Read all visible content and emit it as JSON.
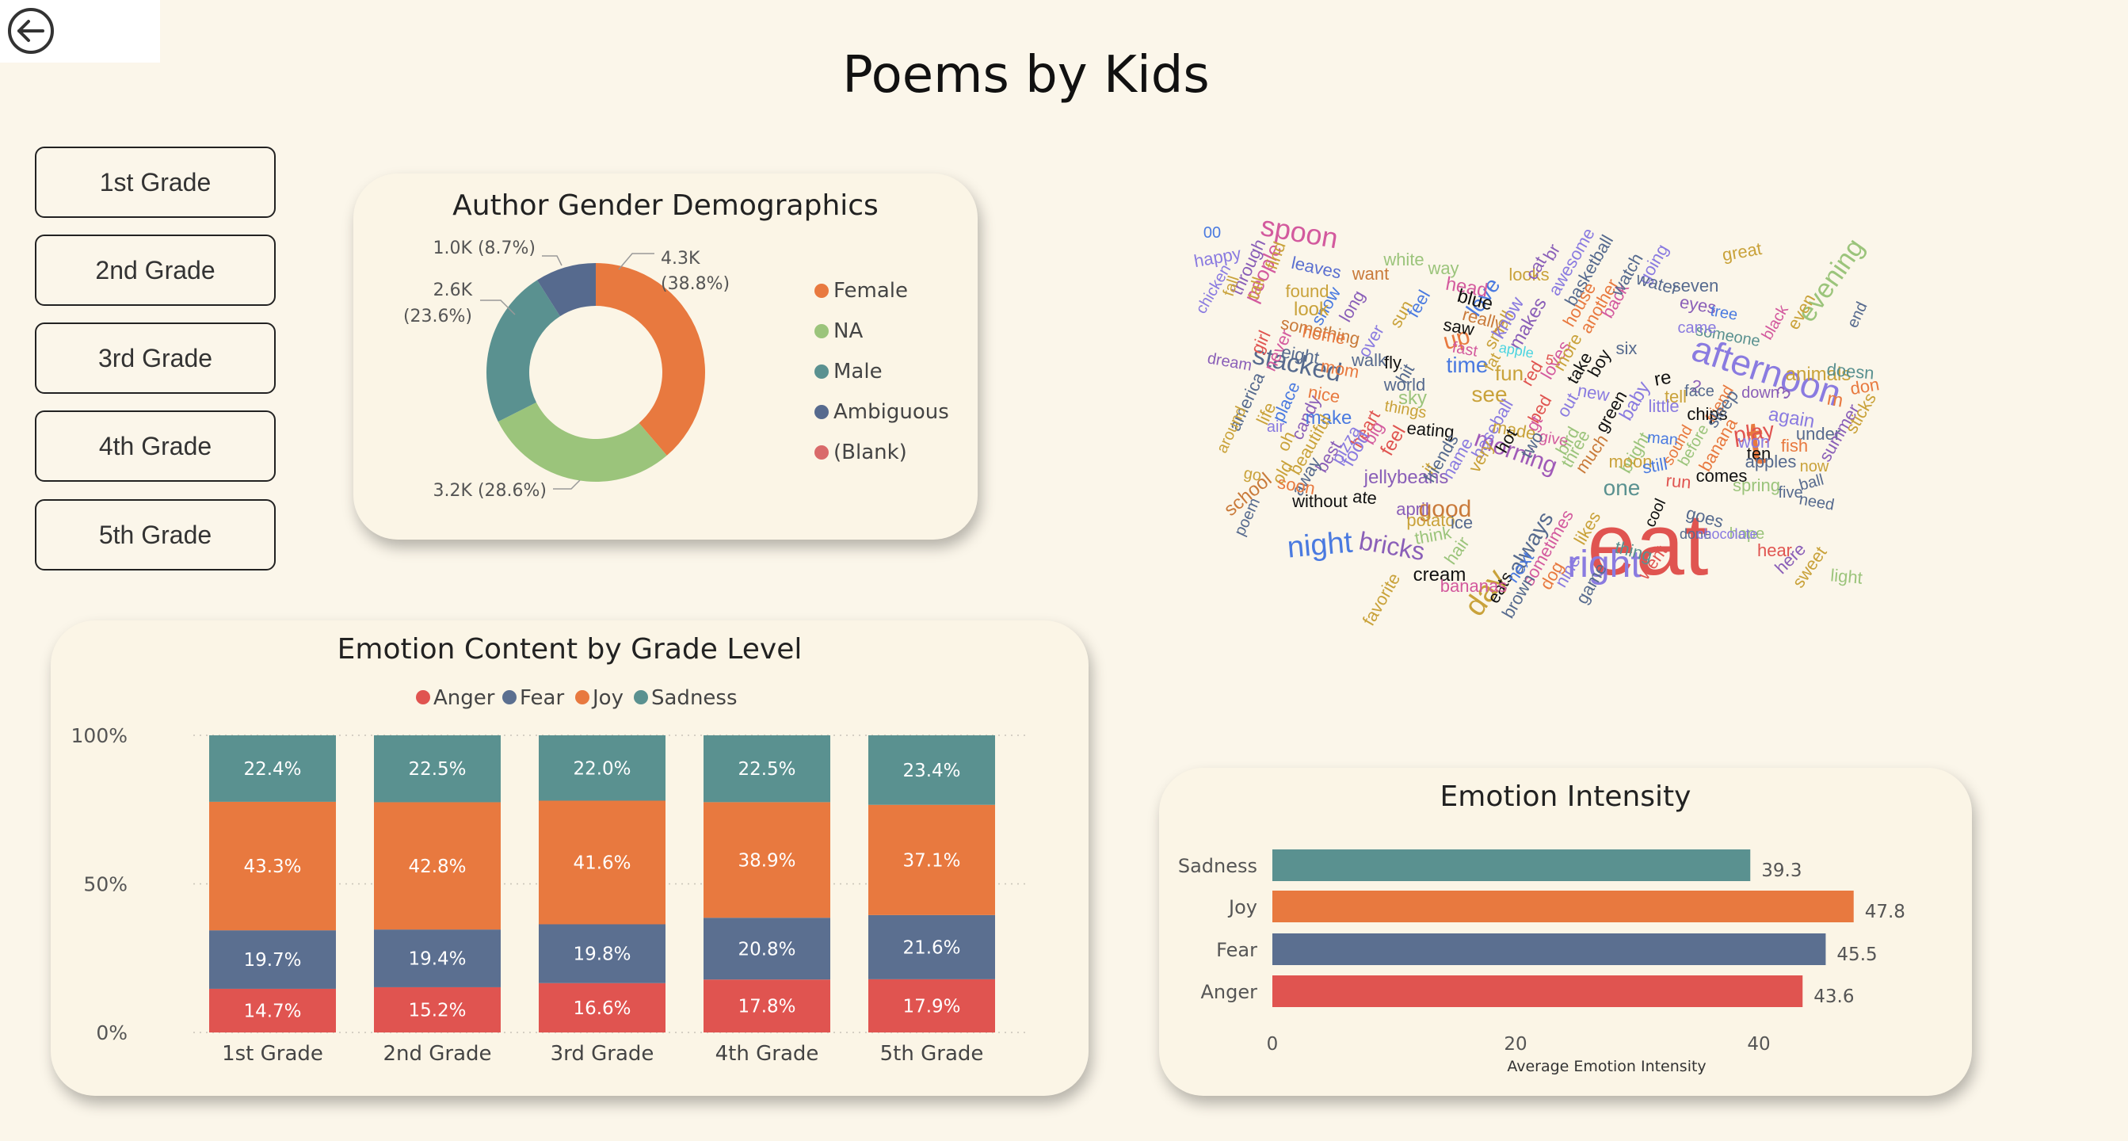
{
  "page": {
    "title": "Poems by Kids"
  },
  "nav": {
    "back_icon": "arrow-left-circle-icon"
  },
  "grades": [
    {
      "label": "1st Grade"
    },
    {
      "label": "2nd Grade"
    },
    {
      "label": "3rd Grade"
    },
    {
      "label": "4th Grade"
    },
    {
      "label": "5th Grade"
    }
  ],
  "colors": {
    "female": "#e8793f",
    "na": "#9bc47b",
    "male": "#5a9190",
    "ambiguous": "#566a8e",
    "blank": "#d96a6a",
    "anger": "#e05450",
    "fear": "#5b6f90",
    "joy": "#e8793f",
    "sadness": "#5a9190"
  },
  "chart_data": [
    {
      "type": "pie",
      "subtype": "donut",
      "title": "Author Gender Demographics",
      "legend": [
        "Female",
        "NA",
        "Male",
        "Ambiguous",
        "(Blank)"
      ],
      "legend_position": "right",
      "slices": [
        {
          "name": "Female",
          "value": 4300,
          "label": "4.3K",
          "percent_label": "(38.8%)"
        },
        {
          "name": "NA",
          "value": 3200,
          "label": "3.2K (28.6%)"
        },
        {
          "name": "Male",
          "value": 2600,
          "label": "2.6K",
          "percent_label": "(23.6%)"
        },
        {
          "name": "Ambiguous",
          "value": 1000,
          "label": "1.0K (8.7%)"
        }
      ]
    },
    {
      "type": "bar",
      "subtype": "100% stacked",
      "title": "Emotion Content by Grade Level",
      "legend": [
        "Anger",
        "Fear",
        "Joy",
        "Sadness"
      ],
      "legend_position": "top",
      "categories": [
        "1st Grade",
        "2nd Grade",
        "3rd Grade",
        "4th Grade",
        "5th Grade"
      ],
      "yticks": [
        "0%",
        "50%",
        "100%"
      ],
      "ylim": [
        0,
        100
      ],
      "grid": true,
      "series": [
        {
          "name": "Anger",
          "values": [
            14.7,
            15.2,
            16.6,
            17.8,
            17.9
          ],
          "labels": [
            "14.7%",
            "15.2%",
            "16.6%",
            "17.8%",
            "17.9%"
          ]
        },
        {
          "name": "Fear",
          "values": [
            19.7,
            19.4,
            19.8,
            20.8,
            21.6
          ],
          "labels": [
            "19.7%",
            "19.4%",
            "19.8%",
            "20.8%",
            "21.6%"
          ]
        },
        {
          "name": "Joy",
          "values": [
            43.3,
            42.8,
            41.6,
            38.9,
            37.1
          ],
          "labels": [
            "43.3%",
            "42.8%",
            "41.6%",
            "38.9%",
            "37.1%"
          ]
        },
        {
          "name": "Sadness",
          "values": [
            22.4,
            22.5,
            22.0,
            22.5,
            23.4
          ],
          "labels": [
            "22.4%",
            "22.5%",
            "22.0%",
            "22.5%",
            "23.4%"
          ]
        }
      ]
    },
    {
      "type": "bar",
      "orientation": "horizontal",
      "title": "Emotion Intensity",
      "categories": [
        "Sadness",
        "Joy",
        "Fear",
        "Anger"
      ],
      "values": [
        39.3,
        47.8,
        45.5,
        43.6
      ],
      "labels": [
        "39.3",
        "47.8",
        "45.5",
        "43.6"
      ],
      "xlabel": "Average Emotion Intensity",
      "xticks": [
        "0",
        "20",
        "40"
      ],
      "xlim": [
        0,
        50
      ]
    }
  ],
  "word_cloud": {
    "words": [
      {
        "t": "eat",
        "c": "#e05450"
      },
      {
        "t": "t",
        "c": "#e8793f"
      },
      {
        "t": "right",
        "c": "#8a7be0"
      },
      {
        "t": "afternoon",
        "c": "#8a7be0"
      },
      {
        "t": "night",
        "c": "#4a7ae0"
      },
      {
        "t": "spoon",
        "c": "#d35a9e"
      },
      {
        "t": "day",
        "c": "#c9a23a"
      },
      {
        "t": "stacked",
        "c": "#566a8e"
      },
      {
        "t": "evening",
        "c": "#9bc47b"
      },
      {
        "t": "bricks",
        "c": "#8a5fb8"
      },
      {
        "t": "morning",
        "c": "#a05ab8"
      },
      {
        "t": "good",
        "c": "#c97a3a"
      },
      {
        "t": "up",
        "c": "#e8793f"
      },
      {
        "t": "time",
        "c": "#4a7ae0"
      },
      {
        "t": "see",
        "c": "#c9a23a"
      },
      {
        "t": "play",
        "c": "#e05450"
      },
      {
        "t": "always",
        "c": "#566a8e"
      },
      {
        "t": "one",
        "c": "#5a9190"
      },
      {
        "t": "love",
        "c": "#4a7ae0"
      },
      {
        "t": "cream",
        "c": "#111"
      },
      {
        "t": "happy",
        "c": "#8a7be0"
      },
      {
        "t": "through",
        "c": "#8a5fb8"
      },
      {
        "t": "people",
        "c": "#d35a9e"
      },
      {
        "t": "fall",
        "c": "#c9a23a"
      },
      {
        "t": "tall",
        "c": "#c9a23a"
      },
      {
        "t": "find",
        "c": "#c9a23a"
      },
      {
        "t": "00",
        "c": "#4a7ae0"
      },
      {
        "t": "chicken",
        "c": "#8a7be0"
      },
      {
        "t": "leaves",
        "c": "#5a6fd0"
      },
      {
        "t": "found",
        "c": "#c9a23a"
      },
      {
        "t": "snow",
        "c": "#4a7ae0"
      },
      {
        "t": "look",
        "c": "#c9a23a"
      },
      {
        "t": "something",
        "c": "#c97a3a"
      },
      {
        "t": "long",
        "c": "#8a5fb8"
      },
      {
        "t": "want",
        "c": "#c97a3a"
      },
      {
        "t": "white",
        "c": "#9bc47b"
      },
      {
        "t": "over",
        "c": "#8a7be0"
      },
      {
        "t": "sun",
        "c": "#c9a23a"
      },
      {
        "t": "feel",
        "c": "#4a7ae0"
      },
      {
        "t": "way",
        "c": "#9bc47b"
      },
      {
        "t": "head",
        "c": "#d35a9e"
      },
      {
        "t": "blue",
        "c": "#111"
      },
      {
        "t": "really",
        "c": "#c97a3a"
      },
      {
        "t": "small",
        "c": "#c9a23a"
      },
      {
        "t": "know",
        "c": "#8a7be0"
      },
      {
        "t": "makes",
        "c": "#8a5fb8"
      },
      {
        "t": "looks",
        "c": "#c9a23a"
      },
      {
        "t": "cat",
        "c": "#8a5fb8"
      },
      {
        "t": "br",
        "c": "#8a5fb8"
      },
      {
        "t": "awesome",
        "c": "#8a7be0"
      },
      {
        "t": "basketball",
        "c": "#566a8e"
      },
      {
        "t": "house",
        "c": "#e8793f"
      },
      {
        "t": "another",
        "c": "#e8793f"
      },
      {
        "t": "back",
        "c": "#d35a9e"
      },
      {
        "t": "watch",
        "c": "#566a8e"
      },
      {
        "t": "going",
        "c": "#8a7be0"
      },
      {
        "t": "water",
        "c": "#566a8e"
      },
      {
        "t": "seven",
        "c": "#566a8e"
      },
      {
        "t": "great",
        "c": "#c9a23a"
      },
      {
        "t": "eyes",
        "c": "#8a5fb8"
      },
      {
        "t": "tree",
        "c": "#4a7ae0"
      },
      {
        "t": "someone",
        "c": "#5a9190"
      },
      {
        "t": "came",
        "c": "#8a7be0"
      },
      {
        "t": "black",
        "c": "#d35a9e"
      },
      {
        "t": "even",
        "c": "#c9a23a"
      },
      {
        "t": "end",
        "c": "#566a8e"
      },
      {
        "t": "girl",
        "c": "#e05450"
      },
      {
        "t": "never",
        "c": "#d35a9e"
      },
      {
        "t": "home",
        "c": "#e8793f"
      },
      {
        "t": "eight",
        "c": "#566a8e"
      },
      {
        "t": "dream",
        "c": "#8a5fb8"
      },
      {
        "t": "mom",
        "c": "#e8793f"
      },
      {
        "t": "walk",
        "c": "#566a8e"
      },
      {
        "t": "fly",
        "c": "#111"
      },
      {
        "t": "saw",
        "c": "#111"
      },
      {
        "t": "hit",
        "c": "#566a8e"
      },
      {
        "t": "fast",
        "c": "#d35a9e"
      },
      {
        "t": "fat",
        "c": "#c9a23a"
      },
      {
        "t": "apple",
        "c": "#4ad4e0"
      },
      {
        "t": "fun",
        "c": "#c9a23a"
      },
      {
        "t": "red",
        "c": "#e05450"
      },
      {
        "t": "5",
        "c": "#e05450"
      },
      {
        "t": "loves",
        "c": "#d35a9e"
      },
      {
        "t": "more",
        "c": "#c9a23a"
      },
      {
        "t": "take",
        "c": "#111"
      },
      {
        "t": "boy",
        "c": "#111"
      },
      {
        "t": "six",
        "c": "#566a8e"
      },
      {
        "t": "animals",
        "c": "#c9a23a"
      },
      {
        "t": "doesn",
        "c": "#5a9190"
      },
      {
        "t": "don",
        "c": "#e8793f"
      },
      {
        "t": "m",
        "c": "#e8793f"
      },
      {
        "t": "3",
        "c": "#8a5fb8"
      },
      {
        "t": "down",
        "c": "#8a5fb8"
      },
      {
        "t": "re",
        "c": "#111"
      },
      {
        "t": "2",
        "c": "#8a5fb8"
      },
      {
        "t": "face",
        "c": "#566a8e"
      },
      {
        "t": "tell",
        "c": "#c9a23a"
      },
      {
        "t": "friend",
        "c": "#e8793f"
      },
      {
        "t": "again",
        "c": "#8a7be0"
      },
      {
        "t": "under",
        "c": "#566a8e"
      },
      {
        "t": "summer",
        "c": "#8a5fb8"
      },
      {
        "t": "sticks",
        "c": "#c9a23a"
      },
      {
        "t": "america",
        "c": "#566a8e"
      },
      {
        "t": "life",
        "c": "#c9a23a"
      },
      {
        "t": "place",
        "c": "#4a7ae0"
      },
      {
        "t": "candy",
        "c": "#8a5fb8"
      },
      {
        "t": "nice",
        "c": "#e8793f"
      },
      {
        "t": "make",
        "c": "#4a7ae0"
      },
      {
        "t": "world",
        "c": "#566a8e"
      },
      {
        "t": "sky",
        "c": "#9bc47b"
      },
      {
        "t": "things",
        "c": "#c9a23a"
      },
      {
        "t": "bed",
        "c": "#e05450"
      },
      {
        "t": "out",
        "c": "#8a7be0"
      },
      {
        "t": "new",
        "c": "#8a7be0"
      },
      {
        "t": "green",
        "c": "#111"
      },
      {
        "t": "baby",
        "c": "#8a7be0"
      },
      {
        "t": "little",
        "c": "#8a7be0"
      },
      {
        "t": "chips",
        "c": "#111"
      },
      {
        "t": "sleep",
        "c": "#566a8e"
      },
      {
        "t": "ten",
        "c": "#111"
      },
      {
        "t": "fish",
        "c": "#e8793f"
      },
      {
        "t": "around",
        "c": "#c9a23a"
      },
      {
        "t": "air",
        "c": "#8a7be0"
      },
      {
        "t": "oh",
        "c": "#c9a23a"
      },
      {
        "t": "beautiful",
        "c": "#c9a23a"
      },
      {
        "t": "best",
        "c": "#8a5fb8"
      },
      {
        "t": "pizza",
        "c": "#8a7be0"
      },
      {
        "t": "heart",
        "c": "#e05450"
      },
      {
        "t": "feel",
        "c": "#e05450"
      },
      {
        "t": "eating",
        "c": "#111"
      },
      {
        "t": "baseball",
        "c": "#8a7be0"
      },
      {
        "t": "made",
        "c": "#c9a23a"
      },
      {
        "t": "gt",
        "c": "#d35a9e"
      },
      {
        "t": "give",
        "c": "#d35a9e"
      },
      {
        "t": "three",
        "c": "#9bc47b"
      },
      {
        "t": "bright",
        "c": "#9bc47b"
      },
      {
        "t": "man",
        "c": "#4a7ae0"
      },
      {
        "t": "sound",
        "c": "#e8793f"
      },
      {
        "t": "before",
        "c": "#9bc47b"
      },
      {
        "t": "banana",
        "c": "#e8793f"
      },
      {
        "t": "won",
        "c": "#8a7be0"
      },
      {
        "t": "apples",
        "c": "#566a8e"
      },
      {
        "t": "now",
        "c": "#c9a23a"
      },
      {
        "t": "go",
        "c": "#c9a23a"
      },
      {
        "t": "old",
        "c": "#c9a23a"
      },
      {
        "t": "away",
        "c": "#566a8e"
      },
      {
        "t": "food",
        "c": "#8a7be0"
      },
      {
        "t": "big",
        "c": "#d35a9e"
      },
      {
        "t": "jellybeans",
        "c": "#8a5fb8"
      },
      {
        "t": "it",
        "c": "#c9a23a"
      },
      {
        "t": "friends",
        "c": "#566a8e"
      },
      {
        "t": "name",
        "c": "#8a7be0"
      },
      {
        "t": "very",
        "c": "#c9a23a"
      },
      {
        "t": "hot",
        "c": "#111"
      },
      {
        "t": "two",
        "c": "#566a8e"
      },
      {
        "t": "bird",
        "c": "#9bc47b"
      },
      {
        "t": "much",
        "c": "#c97a3a"
      },
      {
        "t": "moon",
        "c": "#c9a23a"
      },
      {
        "t": "still",
        "c": "#4a7ae0"
      },
      {
        "t": "run",
        "c": "#e05450"
      },
      {
        "t": "comes",
        "c": "#111"
      },
      {
        "t": "spring",
        "c": "#9bc47b"
      },
      {
        "t": "five",
        "c": "#566a8e"
      },
      {
        "t": "need",
        "c": "#566a8e"
      },
      {
        "t": "ball",
        "c": "#566a8e"
      },
      {
        "t": "poem",
        "c": "#566a8e"
      },
      {
        "t": "school",
        "c": "#c97a3a"
      },
      {
        "t": "soon",
        "c": "#e8793f"
      },
      {
        "t": "without",
        "c": "#111"
      },
      {
        "t": "ate",
        "c": "#111"
      },
      {
        "t": "april",
        "c": "#8a5fb8"
      },
      {
        "t": "potato",
        "c": "#c9a23a"
      },
      {
        "t": "ice",
        "c": "#566a8e"
      },
      {
        "t": "think",
        "c": "#9bc47b"
      },
      {
        "t": "hair",
        "c": "#9bc47b"
      },
      {
        "t": "eats",
        "c": "#111"
      },
      {
        "t": "next",
        "c": "#4a7ae0"
      },
      {
        "t": "nine",
        "c": "#8a7be0"
      },
      {
        "t": "game",
        "c": "#566a8e"
      },
      {
        "t": "sometimes",
        "c": "#d35a9e"
      },
      {
        "t": "likes",
        "c": "#c9a23a"
      },
      {
        "t": "cool",
        "c": "#111"
      },
      {
        "t": "went",
        "c": "#e05450"
      },
      {
        "t": "thing",
        "c": "#5a9190"
      },
      {
        "t": "goes",
        "c": "#566a8e"
      },
      {
        "t": "hope",
        "c": "#9bc47b"
      },
      {
        "t": "hear",
        "c": "#e05450"
      },
      {
        "t": "here",
        "c": "#8a5fb8"
      },
      {
        "t": "sweet",
        "c": "#c9a23a"
      },
      {
        "t": "light",
        "c": "#9bc47b"
      },
      {
        "t": "dog",
        "c": "#e8793f"
      },
      {
        "t": "brown",
        "c": "#566a8e"
      },
      {
        "t": "bananas",
        "c": "#d35a9e"
      },
      {
        "t": "favorite",
        "c": "#c9a23a"
      },
      {
        "t": "done",
        "c": "#566a8e"
      },
      {
        "t": "chocolate",
        "c": "#8a7be0"
      }
    ]
  }
}
